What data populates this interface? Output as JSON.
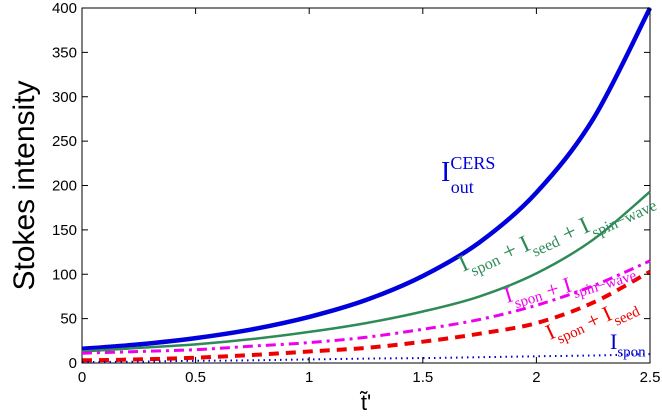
{
  "chart_data": {
    "type": "line",
    "xlabel": "t̃'",
    "ylabel": "Stokes intensity",
    "xlim": [
      0,
      2.5
    ],
    "ylim": [
      0,
      400
    ],
    "xticks": [
      "0",
      "0.5",
      "1",
      "1.5",
      "2",
      "2.5"
    ],
    "yticks": [
      "0",
      "50",
      "100",
      "150",
      "200",
      "250",
      "300",
      "350",
      "400"
    ],
    "grid": false,
    "x": [
      0,
      0.25,
      0.5,
      0.75,
      1.0,
      1.25,
      1.5,
      1.75,
      2.0,
      2.25,
      2.5
    ],
    "series": [
      {
        "label_parts": [
          {
            "text": "I",
            "sub": "out",
            "sup": "CERS"
          }
        ],
        "color": "#0000dd",
        "style": "solid-thick",
        "values": [
          16,
          21,
          28,
          38,
          52,
          71,
          98,
          136,
          192,
          275,
          400
        ]
      },
      {
        "label_parts": [
          {
            "text": "I",
            "sub": "spon"
          },
          {
            "text": " + I",
            "sub": "seed"
          },
          {
            "text": " + I",
            "sub": "spin−wave"
          }
        ],
        "color": "#2e8b57",
        "style": "solid",
        "values": [
          13,
          17,
          21,
          27,
          35,
          45,
          58,
          75,
          101,
          139,
          193
        ]
      },
      {
        "label_parts": [
          {
            "text": "I",
            "sub": "spon"
          },
          {
            "text": " + I",
            "sub": "spin−wave"
          }
        ],
        "color": "#ee00ee",
        "style": "dash-dot",
        "values": [
          11,
          13,
          15,
          19,
          23,
          29,
          38,
          49,
          65,
          87,
          115
        ]
      },
      {
        "label_parts": [
          {
            "text": "I",
            "sub": "spon"
          },
          {
            "text": " + I",
            "sub": "seed"
          }
        ],
        "color": "#ee0000",
        "style": "dashed-thick",
        "values": [
          3,
          4,
          6,
          9,
          13,
          17,
          24,
          33,
          45,
          68,
          103
        ]
      },
      {
        "label_parts": [
          {
            "text": "I",
            "sub": "spon"
          }
        ],
        "color": "#0000cc",
        "style": "dotted",
        "values": [
          1,
          1.5,
          2.5,
          3,
          4,
          5,
          5.5,
          6.5,
          7.5,
          8.5,
          10
        ]
      }
    ]
  }
}
